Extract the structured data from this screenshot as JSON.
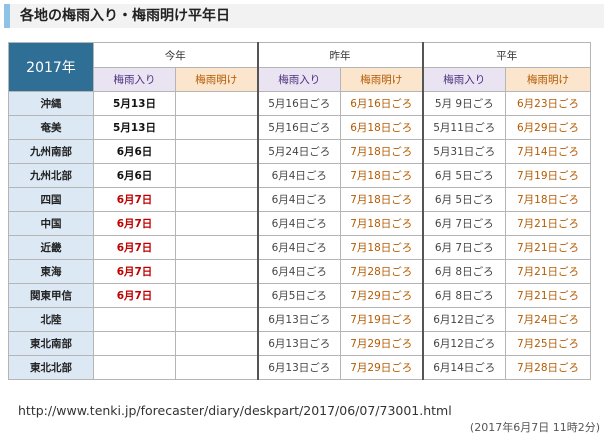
{
  "header": {
    "title": "各地の梅雨入り・梅雨明け平年日"
  },
  "table": {
    "corner": "2017年",
    "groups": [
      "今年",
      "昨年",
      "平年"
    ],
    "subheaders": [
      "梅雨入り",
      "梅雨明け",
      "梅雨入り",
      "梅雨明け",
      "梅雨入り",
      "梅雨明け"
    ],
    "rows": [
      [
        "沖縄",
        "5月13日",
        null,
        "5月16日ごろ",
        "6月16日ごろ",
        "5月 9日ごろ",
        "6月23日ごろ"
      ],
      [
        "奄美",
        "5月13日",
        null,
        "5月16日ごろ",
        "6月18日ごろ",
        "5月11日ごろ",
        "6月29日ごろ"
      ],
      [
        "九州南部",
        "6月6日",
        null,
        "5月24日ごろ",
        "7月18日ごろ",
        "5月31日ごろ",
        "7月14日ごろ"
      ],
      [
        "九州北部",
        "6月6日",
        null,
        "6月4日ごろ",
        "7月18日ごろ",
        "6月 5日ごろ",
        "7月19日ごろ"
      ],
      [
        "四国",
        "6月7日",
        null,
        "6月4日ごろ",
        "7月18日ごろ",
        "6月 5日ごろ",
        "7月18日ごろ"
      ],
      [
        "中国",
        "6月7日",
        null,
        "6月4日ごろ",
        "7月18日ごろ",
        "6月 7日ごろ",
        "7月21日ごろ"
      ],
      [
        "近畿",
        "6月7日",
        null,
        "6月4日ごろ",
        "7月18日ごろ",
        "6月 7日ごろ",
        "7月21日ごろ"
      ],
      [
        "東海",
        "6月7日",
        null,
        "6月4日ごろ",
        "7月28日ごろ",
        "6月 8日ごろ",
        "7月21日ごろ"
      ],
      [
        "関東甲信",
        "6月7日",
        null,
        "6月5日ごろ",
        "7月29日ごろ",
        "6月 8日ごろ",
        "7月21日ごろ"
      ],
      [
        "北陸",
        null,
        null,
        "6月13日ごろ",
        "7月19日ごろ",
        "6月12日ごろ",
        "7月24日ごろ"
      ],
      [
        "東北南部",
        null,
        null,
        "6月13日ごろ",
        "7月29日ごろ",
        "6月12日ごろ",
        "7月25日ごろ"
      ],
      [
        "東北北部",
        null,
        null,
        "6月13日ごろ",
        "7月29日ごろ",
        "6月14日ごろ",
        "7月28日ごろ"
      ]
    ]
  },
  "footer": {
    "url": "http://www.tenki.jp/forecaster/diary/deskpart/2017/06/07/73001.html",
    "timestamp": "(2017年6月7日 11時2分)"
  }
}
